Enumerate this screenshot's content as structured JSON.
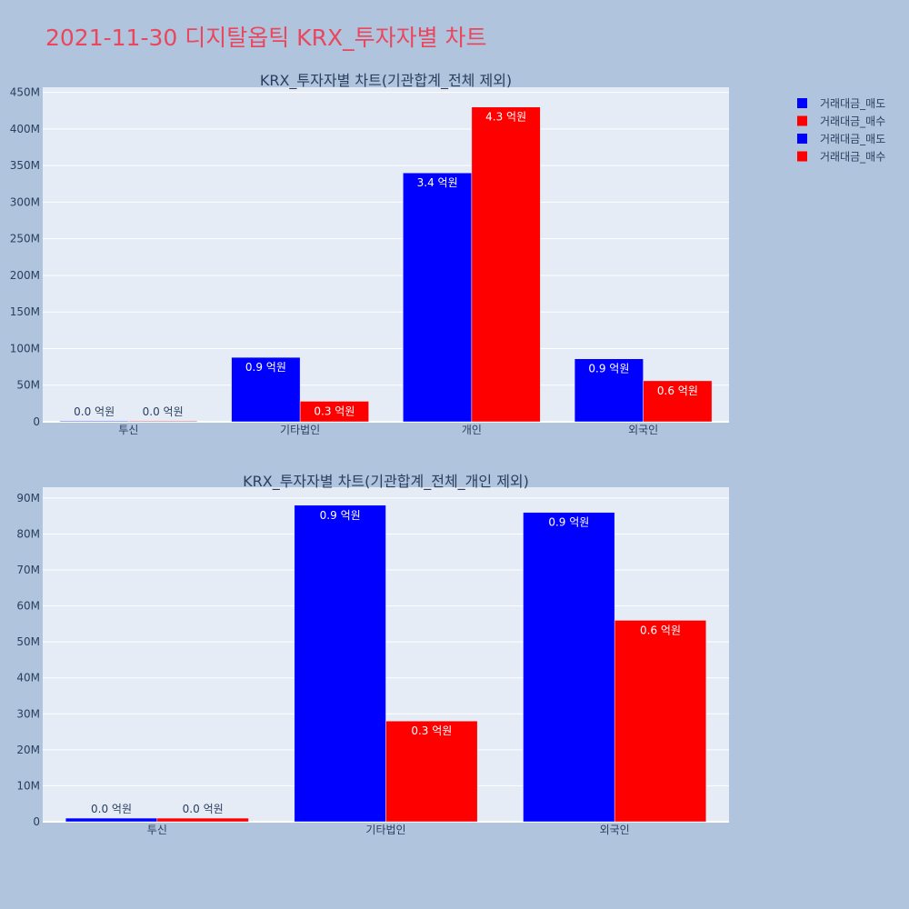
{
  "page_title": "2021-11-30 디지탈옵틱 KRX_투자자별 차트",
  "colors": {
    "sell": "#0000ff",
    "buy": "#ff0000",
    "plot_bg": "#e5ecf6",
    "page_bg": "#b0c4de"
  },
  "legend": [
    "거래대금_매도",
    "거래대금_매수",
    "거래대금_매도",
    "거래대금_매수"
  ],
  "chart_data": [
    {
      "type": "bar",
      "title": "KRX_투자자별 차트(기관합계_전체 제외)",
      "categories": [
        "투신",
        "기타법인",
        "개인",
        "외국인"
      ],
      "series": [
        {
          "name": "거래대금_매도",
          "values": [
            1000000,
            88000000,
            340000000,
            86000000
          ],
          "labels": [
            "0.0 억원",
            "0.9 억원",
            "3.4 억원",
            "0.9 억원"
          ]
        },
        {
          "name": "거래대금_매수",
          "values": [
            1000000,
            28000000,
            430000000,
            56000000
          ],
          "labels": [
            "0.0 억원",
            "0.3 억원",
            "4.3 억원",
            "0.6 억원"
          ]
        }
      ],
      "ylim": [
        0,
        457000000
      ],
      "yticks": [
        0,
        50000000,
        100000000,
        150000000,
        200000000,
        250000000,
        300000000,
        350000000,
        400000000,
        450000000
      ],
      "ytick_labels": [
        "0",
        "50M",
        "100M",
        "150M",
        "200M",
        "250M",
        "300M",
        "350M",
        "400M",
        "450M"
      ],
      "grid": true
    },
    {
      "type": "bar",
      "title": "KRX_투자자별 차트(기관합계_전체_개인 제외)",
      "categories": [
        "투신",
        "기타법인",
        "외국인"
      ],
      "series": [
        {
          "name": "거래대금_매도",
          "values": [
            1000000,
            88000000,
            86000000
          ],
          "labels": [
            "0.0 억원",
            "0.9 억원",
            "0.9 억원"
          ]
        },
        {
          "name": "거래대금_매수",
          "values": [
            1000000,
            28000000,
            56000000
          ],
          "labels": [
            "0.0 억원",
            "0.3 억원",
            "0.6 억원"
          ]
        }
      ],
      "ylim": [
        0,
        93000000
      ],
      "yticks": [
        0,
        10000000,
        20000000,
        30000000,
        40000000,
        50000000,
        60000000,
        70000000,
        80000000,
        90000000
      ],
      "ytick_labels": [
        "0",
        "10M",
        "20M",
        "30M",
        "40M",
        "50M",
        "60M",
        "70M",
        "80M",
        "90M"
      ],
      "grid": true
    }
  ]
}
